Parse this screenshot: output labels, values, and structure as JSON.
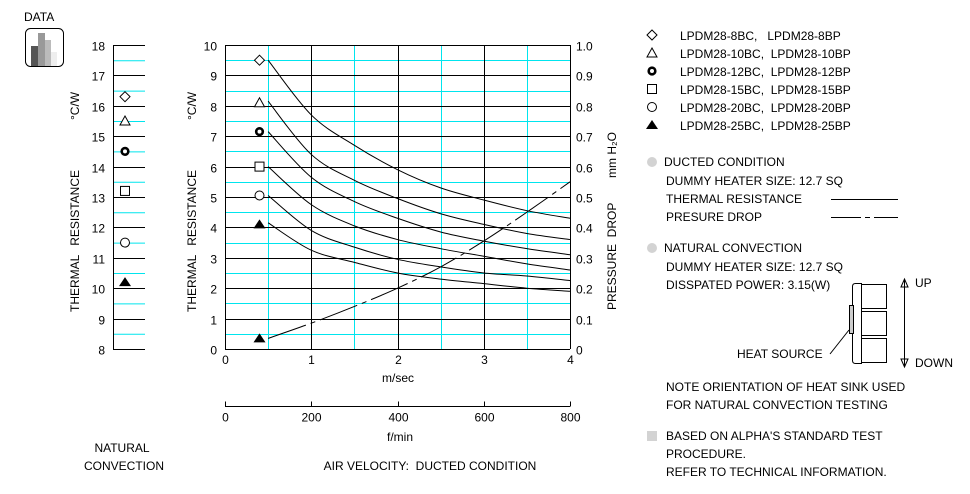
{
  "header": {
    "data_label": "DATA",
    "icon": "bar-chart-icon"
  },
  "colors": {
    "grid_major": "#000000",
    "grid_minor": "#00e5ee",
    "bullet": "#d3d3d3"
  },
  "chart_data": [
    {
      "type": "scatter",
      "ylabel": "THERMAL RESISTANCE",
      "yunit": "°C/W",
      "xlabel_lines": [
        "NATURAL",
        "CONVECTION"
      ],
      "ylim": [
        8,
        18
      ],
      "yticks": [
        "8",
        "9",
        "10",
        "11",
        "12",
        "13",
        "14",
        "15",
        "16",
        "17",
        "18"
      ],
      "grid": true,
      "points": [
        {
          "marker": "diamond",
          "y": 16.3
        },
        {
          "marker": "triangle",
          "y": 15.5
        },
        {
          "marker": "dot-circle",
          "y": 14.5
        },
        {
          "marker": "square",
          "y": 13.2
        },
        {
          "marker": "circle",
          "y": 11.5
        },
        {
          "marker": "filled-triangle",
          "y": 10.2
        }
      ]
    },
    {
      "type": "line",
      "ylabel": "THERMAL RESISTANCE",
      "yunit": "°C/W",
      "y2label": "PRESSURE  DROP",
      "y2unit": "mm H₂O",
      "xlabel": "m/sec",
      "x2label": "f/min",
      "title": "AIR VELOCITY:  DUCTED CONDITION",
      "xlim": [
        0,
        4
      ],
      "ylim": [
        0,
        10
      ],
      "y2lim": [
        0,
        1.0
      ],
      "x2lim": [
        0,
        800
      ],
      "xticks": [
        "0",
        "1",
        "2",
        "3",
        "4"
      ],
      "x2ticks": [
        "0",
        "200",
        "400",
        "600",
        "800"
      ],
      "yticks": [
        "0",
        "1",
        "2",
        "3",
        "4",
        "5",
        "6",
        "7",
        "8",
        "9",
        "10"
      ],
      "y2ticks": [
        "0",
        "0.1",
        "0.2",
        "0.3",
        "0.4",
        "0.5",
        "0.6",
        "0.7",
        "0.8",
        "0.9",
        "1.0"
      ],
      "grid": true,
      "x": [
        0.5,
        1,
        1.5,
        2,
        2.5,
        3,
        3.5,
        4
      ],
      "series": [
        {
          "marker": "diamond",
          "start_marker_y": 9.5,
          "values": [
            9.5,
            7.7,
            6.7,
            5.9,
            5.3,
            4.9,
            4.55,
            4.3
          ]
        },
        {
          "marker": "triangle",
          "start_marker_y": 8.1,
          "values": [
            8.15,
            6.4,
            5.55,
            4.95,
            4.45,
            4.1,
            3.8,
            3.6
          ]
        },
        {
          "marker": "dot-circle",
          "start_marker_y": 7.15,
          "values": [
            7.15,
            5.65,
            4.85,
            4.3,
            3.85,
            3.55,
            3.3,
            3.1
          ]
        },
        {
          "marker": "square",
          "start_marker_y": 6.0,
          "values": [
            6.0,
            4.75,
            4.05,
            3.6,
            3.3,
            3.05,
            2.8,
            2.6
          ]
        },
        {
          "marker": "circle",
          "start_marker_y": 5.05,
          "values": [
            5.05,
            3.9,
            3.35,
            2.95,
            2.7,
            2.5,
            2.4,
            2.25
          ]
        },
        {
          "marker": "filled-triangle",
          "start_marker_y": 4.1,
          "values": [
            4.15,
            3.25,
            2.85,
            2.5,
            2.3,
            2.15,
            2.0,
            1.9
          ]
        }
      ],
      "pressure_drop": {
        "marker": "filled-triangle",
        "axis": "y2",
        "style": "dash-dot",
        "values": [
          0.035,
          0.085,
          0.14,
          0.2,
          0.27,
          0.355,
          0.45,
          0.55
        ]
      }
    }
  ],
  "legend": {
    "items": [
      {
        "marker": "diamond",
        "label": "LPDM28-8BC,   LPDM28-8BP"
      },
      {
        "marker": "triangle",
        "label": "LPDM28-10BC,  LPDM28-10BP"
      },
      {
        "marker": "dot-circle",
        "label": "LPDM28-12BC,  LPDM28-12BP"
      },
      {
        "marker": "square",
        "label": "LPDM28-15BC,  LPDM28-15BP"
      },
      {
        "marker": "circle",
        "label": "LPDM28-20BC,  LPDM28-20BP"
      },
      {
        "marker": "filled-triangle",
        "label": "LPDM28-25BC,  LPDM28-25BP"
      }
    ]
  },
  "notes": {
    "ducted_title": "DUCTED CONDITION",
    "ducted_heater": "DUMMY HEATER SIZE: 12.7 SQ",
    "thermal_resistance": "THERMAL RESISTANCE",
    "pressure_drop": "PRESURE DROP",
    "natural_title": "NATURAL CONVECTION",
    "natural_heater": "DUMMY HEATER SIZE: 12.7 SQ",
    "natural_power": "DISSPATED POWER: 3.15(W)",
    "up": "UP",
    "down": "DOWN",
    "heat_source": "HEAT SOURCE",
    "orientation_1": "NOTE ORIENTATION OF HEAT SINK USED",
    "orientation_2": "FOR NATURAL CONVECTION TESTING",
    "based_1": "BASED ON ALPHA'S STANDARD TEST",
    "based_2": "PROCEDURE.",
    "based_3": "REFER TO TECHNICAL INFORMATION."
  }
}
